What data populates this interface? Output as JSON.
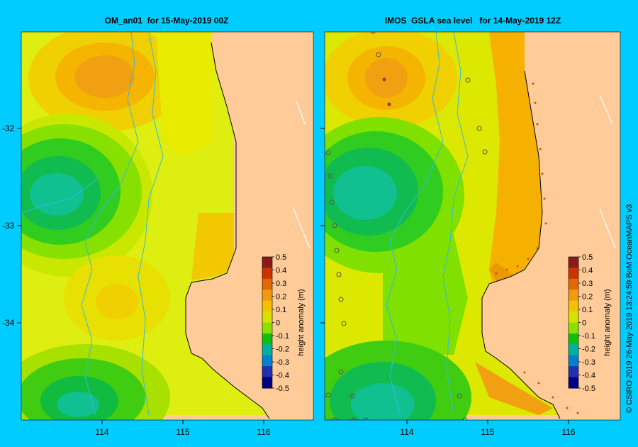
{
  "panels": [
    {
      "title": "OM_an01  for 15-May-2019 00Z"
    },
    {
      "title": "IMOS  GSLA sea level   for 14-May-2019 12Z"
    }
  ],
  "lat_ticks": [
    "-32",
    "-33",
    "-34"
  ],
  "lon_ticks": [
    "114",
    "115",
    "116"
  ],
  "colorbar": {
    "label": "height anomaly  (m)",
    "ticks": [
      "0.5",
      "0.4",
      "0.3",
      "0.2",
      "0.1",
      "0",
      "-0.1",
      "-0.2",
      "-0.3",
      "-0.4",
      "-0.5"
    ],
    "colors": [
      "#8b1a1a",
      "#cc3300",
      "#e06a00",
      "#f09a10",
      "#f5c000",
      "#d8e000",
      "#8ce000",
      "#10c010",
      "#00b0a0",
      "#0080d0",
      "#2030b0",
      "#000080"
    ]
  },
  "credit": "© CSIRO 2019   26-May-2019 13:24:59 BoM OceanMAPS v3",
  "colors": {
    "background": "#00ccff",
    "land": "#ffcc99",
    "coast": "#000000",
    "rivers": "#33bbdd"
  }
}
